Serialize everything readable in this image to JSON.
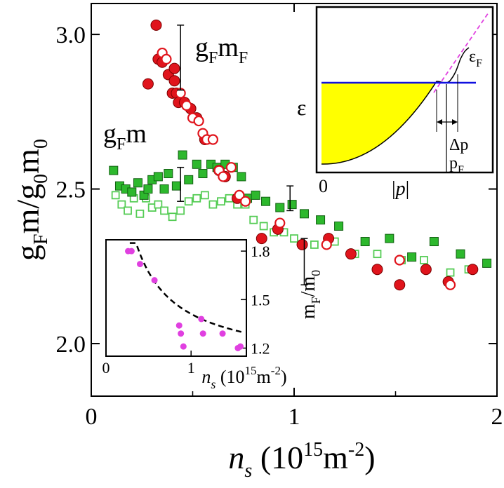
{
  "chart_data": [
    {
      "type": "scatter",
      "title": "",
      "xlabel": {
        "main": "n",
        "sub": "s",
        "unit_pre": " (10",
        "sup": "15",
        "unit_mid": "m",
        "sup2": "-2",
        "unit_post": ")"
      },
      "ylabel": {
        "g": "g",
        "gsub": "F",
        "m": "m/g",
        "sub0": "0",
        "m2": "m",
        "sub02": "0"
      },
      "xlim": [
        0,
        2
      ],
      "ylim": [
        1.83,
        3.1
      ],
      "xticks": [
        "0",
        "1",
        "2"
      ],
      "yticks": [
        "2.0",
        "2.5",
        "3.0"
      ],
      "xtick_values": [
        0,
        1,
        2
      ],
      "ytick_values": [
        2.0,
        2.5,
        3.0
      ],
      "annotations": {
        "gFmF": {
          "a": "g",
          "a_sub": "F",
          "b": "m",
          "b_sub": "F"
        },
        "gFm": {
          "a": "g",
          "a_sub": "F",
          "b": "m"
        }
      },
      "colors": {
        "red": "#e0141c",
        "green": "#2db82d",
        "light_green": "#55cc55"
      },
      "series": [
        {
          "marker": "filled-circle",
          "color": "#e0141c",
          "x": [
            0.28,
            0.32,
            0.33,
            0.35,
            0.38,
            0.4,
            0.41,
            0.41,
            0.42,
            0.43,
            0.46,
            0.49,
            0.52,
            0.56,
            0.63,
            0.66,
            0.72,
            0.84,
            0.92,
            1.04,
            1.17,
            1.28,
            1.41,
            1.52,
            1.65,
            1.76,
            1.88
          ],
          "y": [
            2.84,
            3.03,
            2.92,
            2.91,
            2.87,
            2.81,
            2.85,
            2.89,
            2.81,
            2.78,
            2.78,
            2.76,
            2.73,
            2.66,
            2.56,
            2.54,
            2.47,
            2.34,
            2.37,
            2.32,
            2.34,
            2.29,
            2.24,
            2.19,
            2.24,
            2.2,
            2.24
          ]
        },
        {
          "marker": "open-circle",
          "color": "#e0141c",
          "x": [
            0.35,
            0.37,
            0.44,
            0.47,
            0.5,
            0.53,
            0.55,
            0.57,
            0.6,
            0.63,
            0.65,
            0.69,
            0.73,
            0.76,
            0.93,
            1.16,
            1.52,
            1.77
          ],
          "y": [
            2.94,
            2.92,
            2.81,
            2.77,
            2.73,
            2.72,
            2.68,
            2.66,
            2.66,
            2.56,
            2.54,
            2.57,
            2.48,
            2.46,
            2.39,
            2.32,
            2.27,
            2.19
          ]
        },
        {
          "marker": "filled-square",
          "color": "#2db82d",
          "x": [
            0.11,
            0.14,
            0.17,
            0.2,
            0.23,
            0.26,
            0.28,
            0.3,
            0.33,
            0.36,
            0.38,
            0.42,
            0.45,
            0.48,
            0.52,
            0.55,
            0.59,
            0.62,
            0.66,
            0.7,
            0.74,
            0.77,
            0.81,
            0.86,
            0.93,
            0.99,
            1.05,
            1.13,
            1.22,
            1.35,
            1.47,
            1.58,
            1.69,
            1.82,
            1.95
          ],
          "y": [
            2.56,
            2.51,
            2.5,
            2.49,
            2.52,
            2.48,
            2.5,
            2.53,
            2.54,
            2.5,
            2.55,
            2.51,
            2.61,
            2.53,
            2.58,
            2.55,
            2.58,
            2.57,
            2.58,
            2.57,
            2.54,
            2.47,
            2.48,
            2.46,
            2.44,
            2.45,
            2.42,
            2.4,
            2.38,
            2.33,
            2.34,
            2.28,
            2.33,
            2.29,
            2.26
          ]
        },
        {
          "marker": "open-square",
          "color": "#55cc55",
          "x": [
            0.12,
            0.15,
            0.18,
            0.21,
            0.24,
            0.27,
            0.3,
            0.33,
            0.36,
            0.4,
            0.44,
            0.48,
            0.52,
            0.56,
            0.6,
            0.64,
            0.68,
            0.72,
            0.76,
            0.8,
            0.85,
            0.9,
            0.95,
            1.0,
            1.1,
            1.2,
            1.3,
            1.41,
            1.53,
            1.64,
            1.77,
            1.86
          ],
          "y": [
            2.48,
            2.45,
            2.43,
            2.47,
            2.42,
            2.47,
            2.44,
            2.45,
            2.43,
            2.41,
            2.43,
            2.46,
            2.47,
            2.48,
            2.45,
            2.46,
            2.47,
            2.45,
            2.45,
            2.4,
            2.38,
            2.36,
            2.36,
            2.34,
            2.32,
            2.33,
            2.29,
            2.29,
            2.27,
            2.27,
            2.23,
            2.24
          ]
        }
      ],
      "error_bars": [
        {
          "x": 0.44,
          "low": 2.82,
          "high": 3.03
        },
        {
          "x": 0.44,
          "low": 2.46,
          "high": 2.57
        },
        {
          "x": 0.98,
          "low": 2.43,
          "high": 2.51
        },
        {
          "x": 1.05,
          "low": 2.19,
          "high": 2.34
        }
      ]
    },
    {
      "type": "scatter",
      "inset": "bottom-left",
      "xlabel": {
        "main": "n",
        "sub": "s",
        "unit_pre": " (10",
        "sup": "15",
        "unit_mid": "m",
        "sup2": "-2",
        "unit_post": ")"
      },
      "ylabel": {
        "m": "m",
        "msub": "F",
        "rest": "/m",
        "sub0": "0"
      },
      "xlim": [
        0,
        1.65
      ],
      "ylim": [
        1.15,
        1.87
      ],
      "xticks": [
        "0",
        "1"
      ],
      "yticks": [
        "1.2",
        "1.5",
        "1.8"
      ],
      "xtick_values": [
        0,
        1
      ],
      "ytick_values": [
        1.2,
        1.5,
        1.8
      ],
      "color": "#e040e0",
      "x": [
        0.26,
        0.3,
        0.4,
        0.57,
        0.86,
        0.88,
        0.91,
        1.12,
        1.14,
        1.37,
        1.55,
        1.58
      ],
      "y": [
        1.8,
        1.8,
        1.72,
        1.62,
        1.34,
        1.29,
        1.21,
        1.38,
        1.29,
        1.29,
        1.2,
        1.21
      ],
      "fit": "dashed-curve"
    },
    {
      "type": "line",
      "inset": "top-right",
      "xlabel": {
        "a": "|",
        "p": "p",
        "b": "|"
      },
      "ylabel": "ε",
      "xticks": [
        "0"
      ],
      "annotations": {
        "eF": {
          "e": "ε",
          "sub": "F"
        },
        "dp": "Δp",
        "pF": {
          "p": "p",
          "sub": "F"
        }
      },
      "colors": {
        "fill": "#ffff00",
        "fermi_line": "#1010e0",
        "dashed": "#e040e0"
      }
    }
  ]
}
